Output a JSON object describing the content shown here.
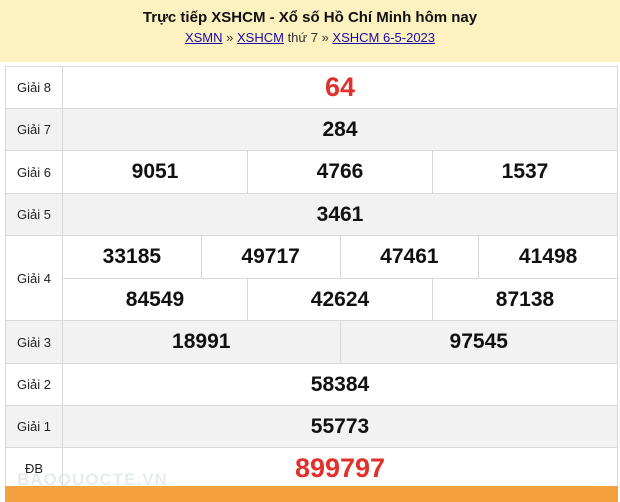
{
  "header": {
    "title": "Trực tiếp XSHCM - Xổ số Hồ Chí Minh hôm nay",
    "breadcrumb": {
      "link1": "XSMN",
      "sep1": " » ",
      "link2": "XSHCM",
      "text": " thứ 7",
      "sep2": " » ",
      "link3": "XSHCM 6-5-2023"
    }
  },
  "results": {
    "g8": {
      "label": "Giải 8",
      "values": [
        "64"
      ]
    },
    "g7": {
      "label": "Giải 7",
      "values": [
        "284"
      ]
    },
    "g6": {
      "label": "Giải 6",
      "values": [
        "9051",
        "4766",
        "1537"
      ]
    },
    "g5": {
      "label": "Giải 5",
      "values": [
        "3461"
      ]
    },
    "g4": {
      "label": "Giải 4",
      "values": [
        "33185",
        "49717",
        "47461",
        "41498",
        "84549",
        "42624",
        "87138"
      ]
    },
    "g3": {
      "label": "Giải 3",
      "values": [
        "18991",
        "97545"
      ]
    },
    "g2": {
      "label": "Giải 2",
      "values": [
        "58384"
      ]
    },
    "g1": {
      "label": "Giải 1",
      "values": [
        "55773"
      ]
    },
    "db": {
      "label": "ĐB",
      "values": [
        "899797"
      ]
    }
  },
  "watermark": "BAOQUOCTE.VN",
  "colors": {
    "header_bg": "#fcf1bf",
    "highlight": "#e0312c",
    "footer_bar": "#f3a03e"
  }
}
